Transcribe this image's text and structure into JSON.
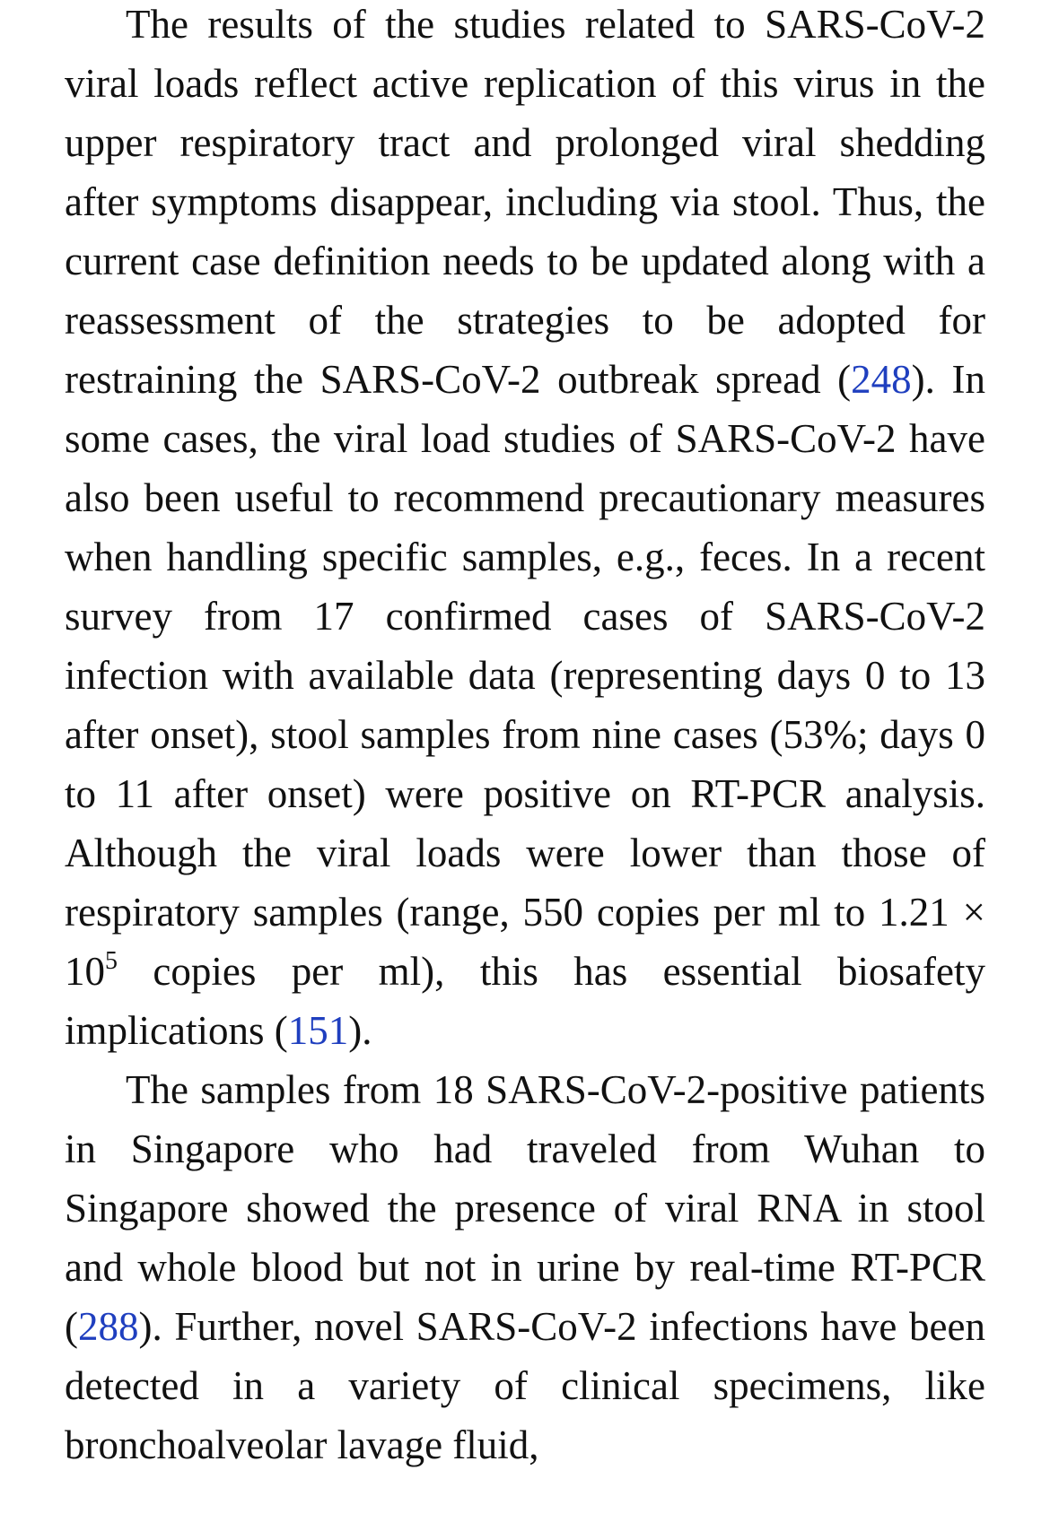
{
  "article": {
    "paragraph1": {
      "s1": "The results of the studies related to SARS-CoV-2 viral loads reflect active replication of this virus in the upper respiratory tract and prolonged viral shedding after symptoms disappear, including via stool. Thus, the current case definition needs to be updated along with a reassessment of the strategies to be adopted for restraining the SARS-CoV-2 outbreak spread (",
      "ref1": "248",
      "s2": "). In some cases, the viral load studies of SARS-CoV-2 have also been useful to recommend precautionary measures when handling specific samples, e.g., feces. In a recent survey from 17 confirmed cases of SARS-CoV-2 infection with available data (representing days 0 to 13 after onset), stool samples from nine cases (53%; days 0 to 11 after onset) were positive on RT-PCR analysis. Although the viral loads were lower than those of respiratory samples (range, 550 copies per ml to 1.21 × 10",
      "exp": "5",
      "s3": " copies per ml), this has essential biosafety implications (",
      "ref2": "151",
      "s4": ")."
    },
    "paragraph2": {
      "s1": "The samples from 18 SARS-CoV-2-positive patients in Singapore who had traveled from Wuhan to Singapore showed the presence of viral RNA in stool and whole blood but not in urine by real-time RT-PCR (",
      "ref1": "288",
      "s2": "). Further, novel SARS-CoV-2 infections have been detected in a variety of clinical specimens, like bronchoalveolar lavage fluid,"
    },
    "colors": {
      "text": "#111111",
      "link": "#1f3fbf",
      "background": "#ffffff"
    }
  }
}
